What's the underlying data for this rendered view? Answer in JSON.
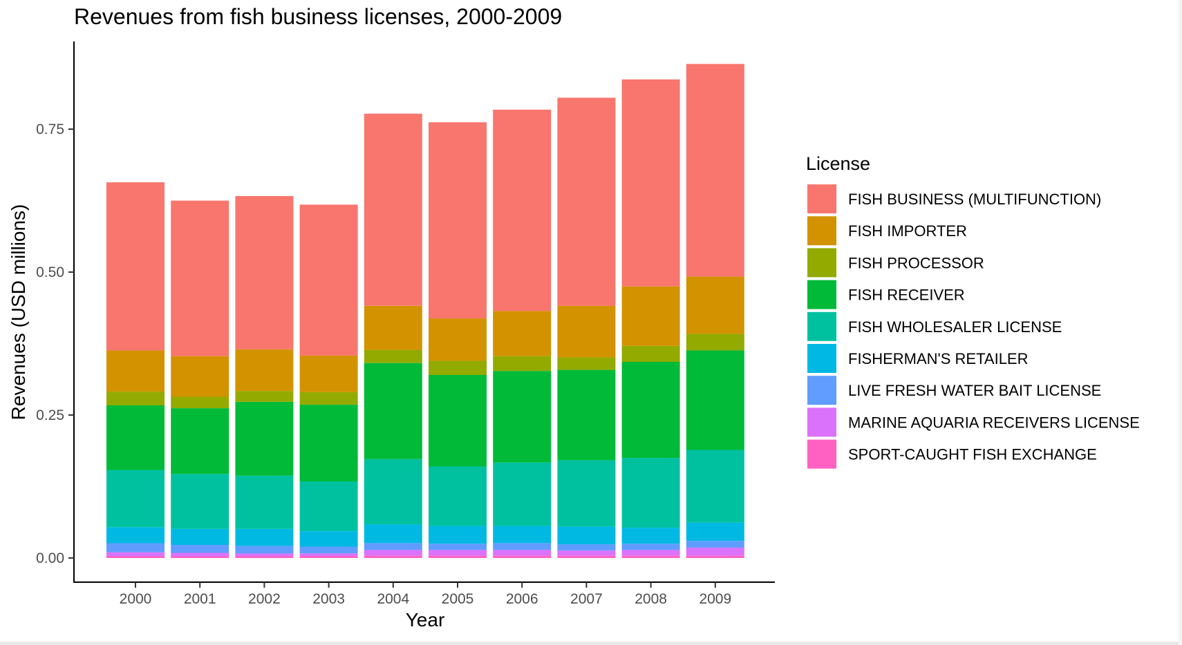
{
  "chart_data": {
    "type": "bar",
    "stacked": true,
    "title": "Revenues from fish business licenses, 2000-2009",
    "xlabel": "Year",
    "ylabel": "Revenues (USD millions)",
    "ylim": [
      0,
      0.9
    ],
    "yticks": [
      0,
      0.25,
      0.5,
      0.75
    ],
    "ytick_labels": [
      "0.00",
      "0.25",
      "0.50",
      "0.75"
    ],
    "grid": false,
    "legend": {
      "title": "License",
      "position": "right"
    },
    "categories": [
      "2000",
      "2001",
      "2002",
      "2003",
      "2004",
      "2005",
      "2006",
      "2007",
      "2008",
      "2009"
    ],
    "series": [
      {
        "name": "SPORT-CAUGHT FISH EXCHANGE",
        "color": "#FF61C3",
        "values": [
          0.003,
          0.003,
          0.003,
          0.003,
          0.004,
          0.004,
          0.004,
          0.004,
          0.004,
          0.004
        ]
      },
      {
        "name": "MARINE AQUARIA RECEIVERS LICENSE",
        "color": "#DB72FB",
        "values": [
          0.007,
          0.006,
          0.005,
          0.005,
          0.01,
          0.01,
          0.01,
          0.009,
          0.01,
          0.014
        ]
      },
      {
        "name": "LIVE FRESH WATER BAIT LICENSE",
        "color": "#619CFF",
        "values": [
          0.016,
          0.014,
          0.013,
          0.012,
          0.012,
          0.011,
          0.012,
          0.011,
          0.011,
          0.012
        ]
      },
      {
        "name": "FISHERMAN'S RETAILER",
        "color": "#00B9E3",
        "values": [
          0.028,
          0.028,
          0.03,
          0.027,
          0.033,
          0.031,
          0.03,
          0.031,
          0.028,
          0.032
        ]
      },
      {
        "name": "FISH WHOLESALER LICENSE",
        "color": "#00C19F",
        "values": [
          0.1,
          0.096,
          0.093,
          0.087,
          0.114,
          0.104,
          0.111,
          0.116,
          0.122,
          0.127
        ]
      },
      {
        "name": "FISH RECEIVER",
        "color": "#00BA38",
        "values": [
          0.113,
          0.115,
          0.129,
          0.134,
          0.168,
          0.16,
          0.16,
          0.158,
          0.168,
          0.174
        ]
      },
      {
        "name": "FISH PROCESSOR",
        "color": "#93AA00",
        "values": [
          0.024,
          0.02,
          0.019,
          0.022,
          0.023,
          0.025,
          0.026,
          0.022,
          0.028,
          0.029
        ]
      },
      {
        "name": "FISH IMPORTER",
        "color": "#D39200",
        "values": [
          0.072,
          0.071,
          0.073,
          0.064,
          0.077,
          0.074,
          0.079,
          0.09,
          0.104,
          0.1
        ]
      },
      {
        "name": "FISH BUSINESS (MULTIFUNCTION)",
        "color": "#F8766D",
        "values": [
          0.294,
          0.272,
          0.268,
          0.264,
          0.336,
          0.343,
          0.352,
          0.364,
          0.362,
          0.372
        ]
      }
    ],
    "legend_order": [
      "FISH BUSINESS (MULTIFUNCTION)",
      "FISH IMPORTER",
      "FISH PROCESSOR",
      "FISH RECEIVER",
      "FISH WHOLESALER LICENSE",
      "FISHERMAN'S RETAILER",
      "LIVE FRESH WATER BAIT LICENSE",
      "MARINE AQUARIA RECEIVERS LICENSE",
      "SPORT-CAUGHT FISH EXCHANGE"
    ]
  }
}
